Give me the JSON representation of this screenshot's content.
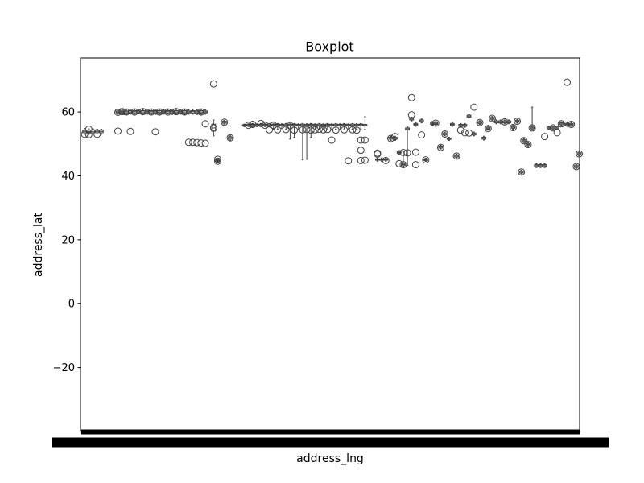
{
  "chart_data": {
    "type": "box",
    "title": "Boxplot",
    "xlabel": "address_lng",
    "ylabel": "address_lat",
    "ylim": [
      -40,
      76.9
    ],
    "yticks": [
      -20,
      0,
      20,
      40,
      60
    ],
    "ytick_labels": [
      "−20",
      "0",
      "20",
      "40",
      "60"
    ],
    "grid": false,
    "legend": "none",
    "colors": {
      "box_edge": "#3f3f3f",
      "outlier_edge": "#3f3f3f",
      "axes": "#000000",
      "tick_band": "#000000"
    },
    "groups": [
      {
        "x": 0.5,
        "q1": 53.5,
        "med": 53.9,
        "q3": 54.3,
        "wlo": 53.0,
        "whi": 54.8,
        "out": [
          53.0
        ]
      },
      {
        "x": 1.0,
        "q1": 53.4,
        "med": 53.8,
        "q3": 54.3,
        "wlo": 53.0,
        "whi": 54.7,
        "out": [
          52.9,
          54.6
        ]
      },
      {
        "x": 1.5,
        "q1": 53.5,
        "med": 53.9,
        "q3": 54.4,
        "wlo": 53.1,
        "whi": 54.7,
        "out": []
      },
      {
        "x": 2.0,
        "q1": 53.5,
        "med": 53.9,
        "q3": 54.3,
        "wlo": 53.1,
        "whi": 54.6,
        "out": [
          53.0
        ]
      },
      {
        "x": 2.5,
        "q1": 53.5,
        "med": 53.9,
        "q3": 54.3,
        "wlo": 53.0,
        "whi": 54.6,
        "out": []
      },
      {
        "x": 4.5,
        "q1": 59.7,
        "med": 60.0,
        "q3": 60.3,
        "wlo": 59.3,
        "whi": 60.7,
        "out": [
          59.9,
          54.0
        ]
      },
      {
        "x": 5.0,
        "q1": 59.7,
        "med": 60.0,
        "q3": 60.3,
        "wlo": 59.3,
        "whi": 60.7,
        "out": [
          60.1
        ]
      },
      {
        "x": 5.5,
        "q1": 59.6,
        "med": 60.0,
        "q3": 60.3,
        "wlo": 59.2,
        "whi": 60.6,
        "out": [
          60.0
        ]
      },
      {
        "x": 6.0,
        "q1": 59.7,
        "med": 60.0,
        "q3": 60.4,
        "wlo": 59.3,
        "whi": 60.8,
        "out": [
          53.9
        ]
      },
      {
        "x": 6.5,
        "q1": 59.7,
        "med": 60.1,
        "q3": 60.4,
        "wlo": 59.3,
        "whi": 60.8,
        "out": [
          60.0
        ]
      },
      {
        "x": 7.0,
        "q1": 59.7,
        "med": 60.0,
        "q3": 60.3,
        "wlo": 59.4,
        "whi": 60.7,
        "out": []
      },
      {
        "x": 7.5,
        "q1": 59.6,
        "med": 60.0,
        "q3": 60.4,
        "wlo": 59.2,
        "whi": 60.7,
        "out": [
          60.1
        ]
      },
      {
        "x": 8.0,
        "q1": 59.7,
        "med": 60.0,
        "q3": 60.3,
        "wlo": 59.3,
        "whi": 60.7,
        "out": []
      },
      {
        "x": 8.5,
        "q1": 59.7,
        "med": 60.1,
        "q3": 60.4,
        "wlo": 59.3,
        "whi": 60.8,
        "out": [
          60.0
        ]
      },
      {
        "x": 9.0,
        "q1": 59.6,
        "med": 60.0,
        "q3": 60.3,
        "wlo": 59.2,
        "whi": 60.6,
        "out": [
          53.8
        ]
      },
      {
        "x": 9.5,
        "q1": 59.7,
        "med": 60.0,
        "q3": 60.4,
        "wlo": 59.3,
        "whi": 60.8,
        "out": [
          60.0
        ]
      },
      {
        "x": 10.0,
        "q1": 59.7,
        "med": 60.0,
        "q3": 60.3,
        "wlo": 59.3,
        "whi": 60.7,
        "out": []
      },
      {
        "x": 10.5,
        "q1": 59.7,
        "med": 60.1,
        "q3": 60.4,
        "wlo": 59.4,
        "whi": 60.8,
        "out": [
          60.0
        ]
      },
      {
        "x": 11.0,
        "q1": 59.6,
        "med": 60.0,
        "q3": 60.3,
        "wlo": 59.2,
        "whi": 60.6,
        "out": []
      },
      {
        "x": 11.5,
        "q1": 59.7,
        "med": 60.0,
        "q3": 60.4,
        "wlo": 59.3,
        "whi": 60.8,
        "out": [
          60.1
        ]
      },
      {
        "x": 12.0,
        "q1": 59.7,
        "med": 60.0,
        "q3": 60.3,
        "wlo": 59.3,
        "whi": 60.7,
        "out": []
      },
      {
        "x": 12.5,
        "q1": 59.6,
        "med": 60.0,
        "q3": 60.4,
        "wlo": 59.2,
        "whi": 60.7,
        "out": [
          60.0
        ]
      },
      {
        "x": 13.0,
        "q1": 59.7,
        "med": 60.0,
        "q3": 60.3,
        "wlo": 59.3,
        "whi": 60.7,
        "out": [
          50.5
        ]
      },
      {
        "x": 13.5,
        "q1": 59.7,
        "med": 60.1,
        "q3": 60.4,
        "wlo": 59.3,
        "whi": 60.8,
        "out": [
          50.5
        ]
      },
      {
        "x": 14.0,
        "q1": 59.6,
        "med": 60.0,
        "q3": 60.3,
        "wlo": 59.2,
        "whi": 60.6,
        "out": [
          50.4
        ]
      },
      {
        "x": 14.5,
        "q1": 59.7,
        "med": 60.0,
        "q3": 60.4,
        "wlo": 59.3,
        "whi": 60.8,
        "out": [
          60.0,
          50.3
        ]
      },
      {
        "x": 15.0,
        "q1": 59.7,
        "med": 60.0,
        "q3": 60.3,
        "wlo": 59.3,
        "whi": 60.7,
        "out": [
          56.3,
          50.2
        ]
      },
      {
        "x": 16.0,
        "q1": 54.0,
        "med": 55.0,
        "q3": 56.2,
        "wlo": 52.5,
        "whi": 57.5,
        "out": [
          68.8,
          55.0
        ]
      },
      {
        "x": 16.5,
        "q1": 44.6,
        "med": 44.8,
        "q3": 45.0,
        "wlo": 44.4,
        "whi": 45.3,
        "out": [
          44.6,
          45.2
        ]
      },
      {
        "x": 17.3,
        "q1": 56.5,
        "med": 56.8,
        "q3": 57.1,
        "wlo": 56.2,
        "whi": 57.4,
        "out": [
          56.8
        ]
      },
      {
        "x": 18.0,
        "q1": 51.5,
        "med": 51.9,
        "q3": 52.2,
        "wlo": 51.0,
        "whi": 52.5,
        "out": [
          51.9
        ]
      },
      {
        "x": 19.7,
        "q1": 55.6,
        "med": 55.8,
        "q3": 56.0,
        "wlo": 55.4,
        "whi": 56.2,
        "out": []
      },
      {
        "x": 20.2,
        "q1": 55.6,
        "med": 55.9,
        "q3": 56.1,
        "wlo": 55.4,
        "whi": 56.3,
        "out": [
          55.8
        ]
      },
      {
        "x": 20.7,
        "q1": 55.7,
        "med": 56.0,
        "q3": 56.2,
        "wlo": 55.4,
        "whi": 56.4,
        "out": [
          56.1
        ]
      },
      {
        "x": 21.2,
        "q1": 55.6,
        "med": 55.9,
        "q3": 56.1,
        "wlo": 55.4,
        "whi": 56.3,
        "out": []
      },
      {
        "x": 21.7,
        "q1": 55.7,
        "med": 56.0,
        "q3": 56.2,
        "wlo": 55.4,
        "whi": 56.4,
        "out": [
          56.4
        ]
      },
      {
        "x": 22.2,
        "q1": 55.6,
        "med": 55.9,
        "q3": 56.1,
        "wlo": 55.4,
        "whi": 56.3,
        "out": [
          55.8
        ]
      },
      {
        "x": 22.7,
        "q1": 55.6,
        "med": 55.9,
        "q3": 56.2,
        "wlo": 55.3,
        "whi": 56.4,
        "out": [
          54.4
        ]
      },
      {
        "x": 23.2,
        "q1": 55.6,
        "med": 55.9,
        "q3": 56.1,
        "wlo": 54.5,
        "whi": 56.3,
        "out": [
          55.8
        ]
      },
      {
        "x": 23.7,
        "q1": 55.7,
        "med": 56.0,
        "q3": 56.2,
        "wlo": 54.5,
        "whi": 56.4,
        "out": [
          54.4
        ]
      },
      {
        "x": 24.2,
        "q1": 55.6,
        "med": 55.9,
        "q3": 56.1,
        "wlo": 54.8,
        "whi": 56.3,
        "out": []
      },
      {
        "x": 24.7,
        "q1": 55.6,
        "med": 55.9,
        "q3": 56.2,
        "wlo": 54.5,
        "whi": 56.4,
        "out": [
          54.5
        ]
      },
      {
        "x": 25.2,
        "q1": 55.6,
        "med": 55.9,
        "q3": 56.1,
        "wlo": 51.5,
        "whi": 56.3,
        "out": [
          55.7
        ]
      },
      {
        "x": 25.7,
        "q1": 55.7,
        "med": 56.0,
        "q3": 56.2,
        "wlo": 52.0,
        "whi": 56.4,
        "out": [
          54.3
        ]
      },
      {
        "x": 26.2,
        "q1": 55.6,
        "med": 55.9,
        "q3": 56.1,
        "wlo": 54.5,
        "whi": 56.3,
        "out": []
      },
      {
        "x": 26.7,
        "q1": 55.6,
        "med": 55.9,
        "q3": 56.2,
        "wlo": 45.0,
        "whi": 56.4,
        "out": [
          54.4
        ]
      },
      {
        "x": 27.2,
        "q1": 55.6,
        "med": 55.9,
        "q3": 56.1,
        "wlo": 45.2,
        "whi": 56.3,
        "out": [
          54.5
        ]
      },
      {
        "x": 27.7,
        "q1": 55.7,
        "med": 56.0,
        "q3": 56.2,
        "wlo": 52.0,
        "whi": 56.4,
        "out": [
          54.3
        ]
      },
      {
        "x": 28.2,
        "q1": 55.6,
        "med": 55.9,
        "q3": 56.1,
        "wlo": 54.5,
        "whi": 56.3,
        "out": [
          54.4
        ]
      },
      {
        "x": 28.7,
        "q1": 55.6,
        "med": 55.9,
        "q3": 56.2,
        "wlo": 54.6,
        "whi": 56.4,
        "out": [
          54.6
        ]
      },
      {
        "x": 29.2,
        "q1": 55.6,
        "med": 55.9,
        "q3": 56.1,
        "wlo": 54.5,
        "whi": 56.3,
        "out": [
          54.4
        ]
      },
      {
        "x": 29.7,
        "q1": 55.7,
        "med": 56.0,
        "q3": 56.2,
        "wlo": 54.7,
        "whi": 56.4,
        "out": [
          54.5
        ]
      },
      {
        "x": 30.2,
        "q1": 55.6,
        "med": 55.9,
        "q3": 56.1,
        "wlo": 54.5,
        "whi": 56.3,
        "out": [
          51.2
        ]
      },
      {
        "x": 30.7,
        "q1": 55.6,
        "med": 55.9,
        "q3": 56.2,
        "wlo": 54.6,
        "whi": 56.4,
        "out": [
          54.3
        ]
      },
      {
        "x": 31.2,
        "q1": 55.6,
        "med": 55.9,
        "q3": 56.1,
        "wlo": 54.5,
        "whi": 56.3,
        "out": []
      },
      {
        "x": 31.7,
        "q1": 55.7,
        "med": 56.0,
        "q3": 56.2,
        "wlo": 54.7,
        "whi": 56.4,
        "out": [
          54.4
        ]
      },
      {
        "x": 32.2,
        "q1": 55.6,
        "med": 55.9,
        "q3": 56.1,
        "wlo": 54.5,
        "whi": 56.3,
        "out": [
          44.7
        ]
      },
      {
        "x": 32.7,
        "q1": 55.6,
        "med": 55.9,
        "q3": 56.2,
        "wlo": 54.6,
        "whi": 56.4,
        "out": [
          54.4
        ]
      },
      {
        "x": 33.2,
        "q1": 55.6,
        "med": 55.9,
        "q3": 56.1,
        "wlo": 54.5,
        "whi": 56.3,
        "out": [
          54.3
        ]
      },
      {
        "x": 33.7,
        "q1": 55.7,
        "med": 56.0,
        "q3": 56.2,
        "wlo": 54.7,
        "whi": 56.4,
        "out": [
          44.8,
          48.0,
          51.2
        ]
      },
      {
        "x": 34.2,
        "q1": 55.6,
        "med": 55.9,
        "q3": 56.1,
        "wlo": 54.5,
        "whi": 58.5,
        "out": [
          51.2,
          44.9
        ]
      },
      {
        "x": 35.7,
        "q1": 44.9,
        "med": 45.1,
        "q3": 45.3,
        "wlo": 44.6,
        "whi": 45.6,
        "out": [
          47.1,
          46.8
        ]
      },
      {
        "x": 36.2,
        "q1": 44.9,
        "med": 45.1,
        "q3": 45.3,
        "wlo": 44.6,
        "whi": 45.6,
        "out": []
      },
      {
        "x": 36.7,
        "q1": 44.9,
        "med": 45.1,
        "q3": 45.3,
        "wlo": 44.6,
        "whi": 45.6,
        "out": [
          44.8
        ]
      },
      {
        "x": 37.3,
        "q1": 51.5,
        "med": 51.8,
        "q3": 52.1,
        "wlo": 51.1,
        "whi": 52.4,
        "out": [
          51.7
        ]
      },
      {
        "x": 37.8,
        "q1": 51.5,
        "med": 51.8,
        "q3": 52.1,
        "wlo": 51.1,
        "whi": 52.4,
        "out": [
          52.3
        ]
      },
      {
        "x": 38.3,
        "q1": 47.0,
        "med": 47.3,
        "q3": 47.6,
        "wlo": 46.7,
        "whi": 47.9,
        "out": [
          43.8
        ]
      },
      {
        "x": 38.8,
        "q1": 43.2,
        "med": 43.5,
        "q3": 43.8,
        "wlo": 42.9,
        "whi": 47.5,
        "out": [
          47.3,
          43.5
        ]
      },
      {
        "x": 39.3,
        "q1": 54.4,
        "med": 54.7,
        "q3": 55.0,
        "wlo": 43.3,
        "whi": 55.3,
        "out": [
          47.2
        ]
      },
      {
        "x": 39.8,
        "q1": 57.5,
        "med": 57.8,
        "q3": 58.1,
        "wlo": 57.2,
        "whi": 58.4,
        "out": [
          64.5,
          59.1
        ]
      },
      {
        "x": 40.3,
        "q1": 55.8,
        "med": 56.1,
        "q3": 56.4,
        "wlo": 55.5,
        "whi": 56.7,
        "out": [
          43.5,
          47.4
        ]
      },
      {
        "x": 41.0,
        "q1": 56.9,
        "med": 57.2,
        "q3": 57.5,
        "wlo": 56.6,
        "whi": 57.8,
        "out": [
          52.8
        ]
      },
      {
        "x": 41.5,
        "q1": 44.8,
        "med": 45.0,
        "q3": 45.2,
        "wlo": 44.5,
        "whi": 45.5,
        "out": [
          45.0
        ]
      },
      {
        "x": 42.3,
        "q1": 56.1,
        "med": 56.4,
        "q3": 56.7,
        "wlo": 55.8,
        "whi": 57.0,
        "out": []
      },
      {
        "x": 42.7,
        "q1": 56.1,
        "med": 56.4,
        "q3": 56.7,
        "wlo": 55.8,
        "whi": 57.0,
        "out": [
          56.5
        ]
      },
      {
        "x": 43.3,
        "q1": 48.7,
        "med": 49.0,
        "q3": 49.3,
        "wlo": 48.4,
        "whi": 49.6,
        "out": [
          48.9
        ]
      },
      {
        "x": 43.8,
        "q1": 52.8,
        "med": 53.1,
        "q3": 53.4,
        "wlo": 52.5,
        "whi": 53.7,
        "out": [
          53.1
        ]
      },
      {
        "x": 44.3,
        "q1": 51.4,
        "med": 51.6,
        "q3": 51.8,
        "wlo": 51.1,
        "whi": 52.1,
        "out": []
      },
      {
        "x": 44.7,
        "q1": 55.8,
        "med": 56.1,
        "q3": 56.4,
        "wlo": 55.5,
        "whi": 56.7,
        "out": []
      },
      {
        "x": 45.2,
        "q1": 45.9,
        "med": 46.2,
        "q3": 46.5,
        "wlo": 45.6,
        "whi": 46.8,
        "out": [
          46.2
        ]
      },
      {
        "x": 45.7,
        "q1": 55.5,
        "med": 55.8,
        "q3": 56.1,
        "wlo": 55.2,
        "whi": 56.4,
        "out": [
          54.3
        ]
      },
      {
        "x": 46.2,
        "q1": 55.5,
        "med": 55.8,
        "q3": 56.1,
        "wlo": 55.2,
        "whi": 56.4,
        "out": [
          53.5
        ]
      },
      {
        "x": 46.7,
        "q1": 58.4,
        "med": 58.7,
        "q3": 59.0,
        "wlo": 58.1,
        "whi": 59.3,
        "out": [
          53.4
        ]
      },
      {
        "x": 47.3,
        "q1": 52.8,
        "med": 53.1,
        "q3": 53.4,
        "wlo": 52.5,
        "whi": 53.7,
        "out": [
          61.5
        ]
      },
      {
        "x": 48.0,
        "q1": 56.4,
        "med": 56.7,
        "q3": 57.0,
        "wlo": 56.1,
        "whi": 57.3,
        "out": [
          56.7
        ]
      },
      {
        "x": 48.5,
        "q1": 51.5,
        "med": 51.8,
        "q3": 52.1,
        "wlo": 51.2,
        "whi": 52.4,
        "out": []
      },
      {
        "x": 49.0,
        "q1": 54.6,
        "med": 54.9,
        "q3": 55.2,
        "wlo": 54.3,
        "whi": 55.5,
        "out": [
          54.8
        ]
      },
      {
        "x": 49.5,
        "q1": 57.7,
        "med": 58.0,
        "q3": 58.3,
        "wlo": 57.4,
        "whi": 58.6,
        "out": [
          58.0
        ]
      },
      {
        "x": 50.0,
        "q1": 56.6,
        "med": 56.9,
        "q3": 57.2,
        "wlo": 56.3,
        "whi": 57.5,
        "out": []
      },
      {
        "x": 50.5,
        "q1": 56.6,
        "med": 56.9,
        "q3": 57.2,
        "wlo": 56.3,
        "whi": 57.5,
        "out": []
      },
      {
        "x": 51.0,
        "q1": 56.6,
        "med": 56.9,
        "q3": 57.2,
        "wlo": 56.3,
        "whi": 57.5,
        "out": [
          56.9
        ]
      },
      {
        "x": 51.5,
        "q1": 56.6,
        "med": 56.9,
        "q3": 57.2,
        "wlo": 56.3,
        "whi": 57.5,
        "out": []
      },
      {
        "x": 52.0,
        "q1": 54.9,
        "med": 55.2,
        "q3": 55.5,
        "wlo": 54.6,
        "whi": 55.8,
        "out": [
          55.1
        ]
      },
      {
        "x": 52.5,
        "q1": 56.8,
        "med": 57.1,
        "q3": 57.4,
        "wlo": 56.5,
        "whi": 57.7,
        "out": [
          57.1
        ]
      },
      {
        "x": 53.0,
        "q1": 40.9,
        "med": 41.2,
        "q3": 41.5,
        "wlo": 40.6,
        "whi": 41.8,
        "out": [
          41.2
        ]
      },
      {
        "x": 53.3,
        "q1": 50.7,
        "med": 51.0,
        "q3": 51.3,
        "wlo": 50.4,
        "whi": 51.6,
        "out": [
          51.0
        ]
      },
      {
        "x": 53.8,
        "q1": 49.5,
        "med": 49.8,
        "q3": 50.1,
        "wlo": 49.2,
        "whi": 50.4,
        "out": [
          49.8
        ]
      },
      {
        "x": 54.3,
        "q1": 54.7,
        "med": 55.0,
        "q3": 55.3,
        "wlo": 54.4,
        "whi": 61.5,
        "out": [
          55.0
        ]
      },
      {
        "x": 54.8,
        "q1": 42.9,
        "med": 43.2,
        "q3": 43.5,
        "wlo": 42.6,
        "whi": 43.8,
        "out": []
      },
      {
        "x": 55.3,
        "q1": 42.9,
        "med": 43.2,
        "q3": 43.5,
        "wlo": 42.6,
        "whi": 43.8,
        "out": []
      },
      {
        "x": 55.8,
        "q1": 42.9,
        "med": 43.2,
        "q3": 43.5,
        "wlo": 42.6,
        "whi": 43.8,
        "out": [
          52.3
        ]
      },
      {
        "x": 56.3,
        "q1": 54.7,
        "med": 55.0,
        "q3": 55.3,
        "wlo": 54.4,
        "whi": 55.6,
        "out": []
      },
      {
        "x": 56.8,
        "q1": 54.7,
        "med": 55.0,
        "q3": 55.3,
        "wlo": 54.4,
        "whi": 55.6,
        "out": [
          55.0
        ]
      },
      {
        "x": 57.3,
        "q1": 54.7,
        "med": 55.0,
        "q3": 55.3,
        "wlo": 54.4,
        "whi": 55.6,
        "out": [
          53.5
        ]
      },
      {
        "x": 57.8,
        "q1": 56.0,
        "med": 56.3,
        "q3": 56.6,
        "wlo": 55.7,
        "whi": 56.9,
        "out": [
          56.3
        ]
      },
      {
        "x": 58.5,
        "q1": 55.8,
        "med": 56.1,
        "q3": 56.4,
        "wlo": 55.5,
        "whi": 56.7,
        "out": [
          69.3
        ]
      },
      {
        "x": 59.0,
        "q1": 55.8,
        "med": 56.1,
        "q3": 56.4,
        "wlo": 55.5,
        "whi": 56.7,
        "out": [
          56.1
        ]
      },
      {
        "x": 59.6,
        "q1": 42.6,
        "med": 42.9,
        "q3": 43.2,
        "wlo": 42.3,
        "whi": 43.5,
        "out": [
          42.9
        ]
      },
      {
        "x": 59.95,
        "q1": 46.6,
        "med": 46.9,
        "q3": 47.2,
        "wlo": 46.3,
        "whi": 47.5,
        "out": [
          46.9
        ]
      }
    ]
  }
}
